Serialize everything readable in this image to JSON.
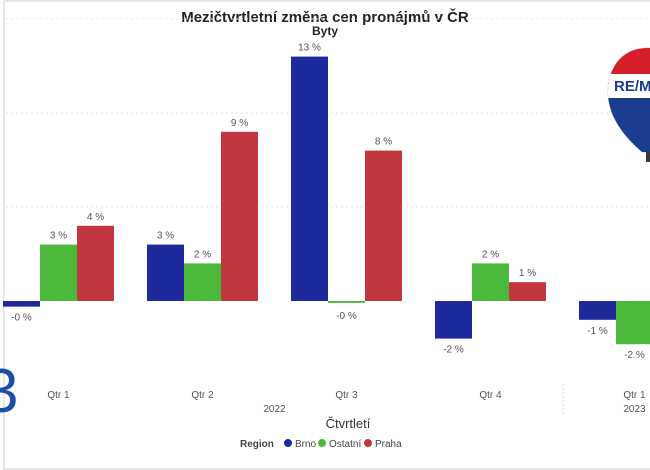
{
  "chart_data": {
    "type": "bar",
    "title": "Mezičtvrtletní změna cen pronájmů v ČR",
    "subtitle": "Byty",
    "xlabel": "Čtvrtletí",
    "ylabel": "",
    "ylim": [
      -4,
      15
    ],
    "grid": true,
    "categories": [
      "Qtr 1",
      "Qtr 2",
      "Qtr 3",
      "Qtr 4",
      "Qtr 1"
    ],
    "years": [
      {
        "label": "2022",
        "span": [
          0,
          3
        ]
      },
      {
        "label": "2023",
        "span": [
          4,
          4
        ]
      }
    ],
    "series": [
      {
        "name": "Brno",
        "color": "#1c2a9c",
        "values": [
          -0.3,
          3,
          13,
          -2,
          -1
        ],
        "labels": [
          "-0 %",
          "3 %",
          "13 %",
          "-2 %",
          "-1 %"
        ]
      },
      {
        "name": "Ostatní",
        "color": "#4cb93c",
        "values": [
          3,
          2,
          -0.1,
          2,
          -2.3
        ],
        "labels": [
          "3 %",
          "2 %",
          "-0 %",
          "2 %",
          "-2 %"
        ]
      },
      {
        "name": "Praha",
        "color": "#c1373d",
        "values": [
          4,
          9,
          8,
          1,
          null
        ],
        "labels": [
          "4 %",
          "9 %",
          "8 %",
          "1 %",
          ""
        ]
      }
    ],
    "legend": {
      "title": "Region",
      "placement": "bottom-center"
    }
  },
  "logos": {
    "balloon_text": "RE/M",
    "partial_glyph": "3"
  }
}
